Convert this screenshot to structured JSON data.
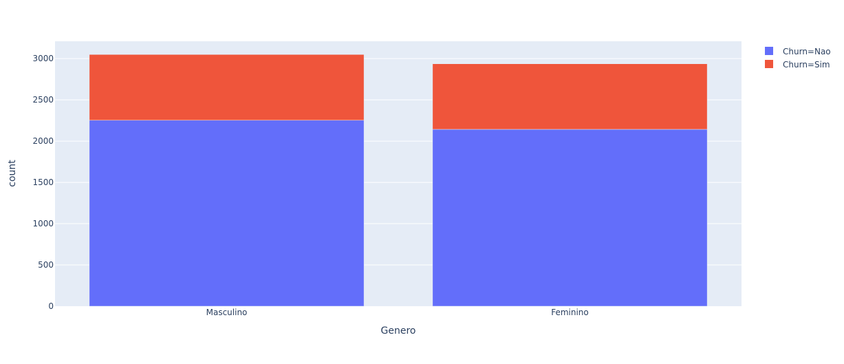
{
  "chart_data": {
    "type": "bar",
    "barmode": "stack",
    "categories": [
      "Masculino",
      "Feminino"
    ],
    "series": [
      {
        "name": "Churn=Nao",
        "values": [
          2253,
          2143
        ],
        "color": "#636efa"
      },
      {
        "name": "Churn=Sim",
        "values": [
          797,
          794
        ],
        "color": "#ef553b"
      }
    ],
    "title": "",
    "xlabel": "Genero",
    "ylabel": "count",
    "ylim": [
      0,
      3210
    ],
    "yticks": [
      0,
      500,
      1000,
      1500,
      2000,
      2500,
      3000
    ],
    "grid": true,
    "legend_position": "top-right",
    "plot_background": "#e5ecf6"
  }
}
